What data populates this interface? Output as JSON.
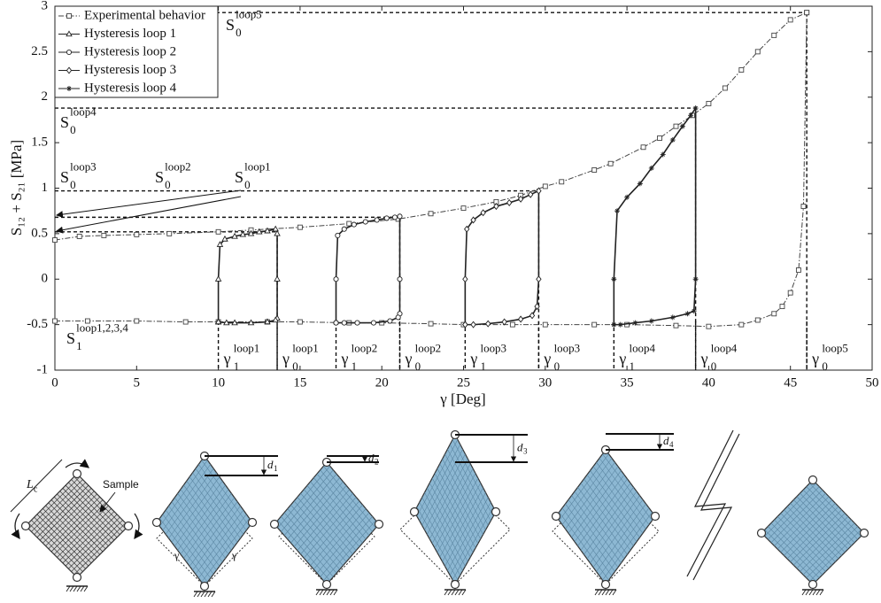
{
  "chart_data": {
    "type": "line",
    "x_label": "γ [Deg]",
    "y_label": "S₁₂ + S₂₁ [MPa]",
    "xlim": [
      0,
      50
    ],
    "xticks": [
      0,
      5,
      10,
      15,
      20,
      25,
      30,
      35,
      40,
      45,
      50
    ],
    "ylim": [
      -1,
      3
    ],
    "yticks": [
      -1,
      -0.5,
      0,
      0.5,
      1,
      1.5,
      2,
      2.5,
      3
    ],
    "legend": "upper left",
    "series": [
      {
        "name": "Experimental behavior",
        "color": "#444444",
        "dash": "dashdot",
        "marker": "square",
        "x": [
          0,
          1.5,
          3,
          5,
          7,
          10,
          12,
          15,
          18,
          21,
          23,
          25,
          27,
          28.5,
          30,
          31,
          33,
          34,
          36,
          37,
          38,
          39,
          40,
          41,
          42,
          43,
          44,
          45,
          46,
          null,
          0,
          2,
          5,
          8,
          10,
          13,
          15,
          18,
          20,
          23,
          25,
          28,
          30,
          33,
          35,
          38,
          40,
          42,
          43,
          44,
          44.5,
          45,
          45.5,
          45.8,
          46
        ],
        "values": [
          0.43,
          0.47,
          0.48,
          0.49,
          0.5,
          0.52,
          0.54,
          0.57,
          0.61,
          0.66,
          0.72,
          0.78,
          0.85,
          0.92,
          1.02,
          1.07,
          1.2,
          1.27,
          1.45,
          1.55,
          1.68,
          1.8,
          1.93,
          2.1,
          2.3,
          2.5,
          2.68,
          2.85,
          2.93,
          null,
          -0.46,
          -0.46,
          -0.46,
          -0.47,
          -0.47,
          -0.47,
          -0.47,
          -0.48,
          -0.48,
          -0.49,
          -0.5,
          -0.5,
          -0.5,
          -0.5,
          -0.5,
          -0.51,
          -0.52,
          -0.5,
          -0.45,
          -0.38,
          -0.3,
          -0.15,
          0.1,
          0.8,
          2.93
        ]
      },
      {
        "name": "Hysteresis loop 1",
        "color": "#222222",
        "dash": "solid",
        "marker": "triangle",
        "x": [
          10,
          10,
          10.1,
          10.4,
          11,
          11.5,
          12,
          12.5,
          13,
          13.5,
          13.6,
          13.6,
          13.6,
          13.5,
          13,
          12,
          11,
          10.5,
          10
        ],
        "values": [
          -0.47,
          0,
          0.38,
          0.44,
          0.47,
          0.49,
          0.5,
          0.52,
          0.53,
          0.55,
          0.5,
          0,
          -0.43,
          -0.45,
          -0.47,
          -0.48,
          -0.48,
          -0.48,
          -0.47
        ]
      },
      {
        "name": "Hysteresis loop 2",
        "color": "#222222",
        "dash": "solid",
        "marker": "circle",
        "x": [
          17.2,
          17.2,
          17.3,
          17.7,
          18.3,
          19,
          19.7,
          20.3,
          20.8,
          21.1,
          21.1,
          21.1,
          21,
          20.5,
          19.5,
          18.5,
          17.7,
          17.2
        ],
        "values": [
          -0.48,
          0,
          0.48,
          0.55,
          0.6,
          0.63,
          0.65,
          0.67,
          0.68,
          0.69,
          0,
          -0.38,
          -0.42,
          -0.46,
          -0.48,
          -0.48,
          -0.48,
          -0.48
        ]
      },
      {
        "name": "Hysteresis loop 3",
        "color": "#222222",
        "dash": "solid",
        "marker": "diamond",
        "x": [
          25.1,
          25.1,
          25.2,
          25.6,
          26.2,
          27,
          27.8,
          28.5,
          29.1,
          29.6,
          29.6,
          29.5,
          29.2,
          28.5,
          27.5,
          26.5,
          25.6,
          25.1
        ],
        "values": [
          -0.5,
          0,
          0.55,
          0.65,
          0.73,
          0.8,
          0.84,
          0.88,
          0.93,
          0.97,
          0,
          -0.3,
          -0.4,
          -0.44,
          -0.47,
          -0.49,
          -0.5,
          -0.5
        ]
      },
      {
        "name": "Hysteresis loop 4",
        "color": "#222222",
        "dash": "solid",
        "marker": "star",
        "x": [
          34.2,
          34.2,
          34.4,
          35,
          35.8,
          36.5,
          37.2,
          37.8,
          38.4,
          38.9,
          39.2,
          39.2,
          39.1,
          38.7,
          37.8,
          36.5,
          35.5,
          34.6,
          34.2
        ],
        "values": [
          -0.5,
          0,
          0.75,
          0.9,
          1.05,
          1.22,
          1.37,
          1.53,
          1.68,
          1.8,
          1.88,
          0,
          -0.35,
          -0.38,
          -0.42,
          -0.46,
          -0.48,
          -0.5,
          -0.5
        ]
      }
    ],
    "stress_labels": [
      {
        "base": "S",
        "sub": "0",
        "sup": "loop5",
        "x": 46,
        "y": 2.93
      },
      {
        "base": "S",
        "sub": "0",
        "sup": "loop4",
        "x": 39.2,
        "y": 1.88
      },
      {
        "base": "S",
        "sub": "0",
        "sup": "loop3",
        "x": 29.6,
        "y": 0.97
      },
      {
        "base": "S",
        "sub": "0",
        "sup": "loop2",
        "x": 21.1,
        "y": 0.68
      },
      {
        "base": "S",
        "sub": "0",
        "sup": "loop1",
        "x": 13.6,
        "y": 0.52
      },
      {
        "base": "S",
        "sub": "1",
        "sup": "loop1,2,3,4"
      }
    ],
    "gamma_labels": [
      {
        "base": "γ",
        "sub": "1",
        "sup": "loop1",
        "x": 10
      },
      {
        "base": "γ",
        "sub": "0",
        "sup": "loop1",
        "x": 13.6
      },
      {
        "base": "γ",
        "sub": "1",
        "sup": "loop2",
        "x": 17.2
      },
      {
        "base": "γ",
        "sub": "0",
        "sup": "loop2",
        "x": 21.1
      },
      {
        "base": "γ",
        "sub": "1",
        "sup": "loop3",
        "x": 25.1
      },
      {
        "base": "γ",
        "sub": "0",
        "sup": "loop3",
        "x": 29.6
      },
      {
        "base": "γ",
        "sub": "1",
        "sup": "loop4",
        "x": 34.2
      },
      {
        "base": "γ",
        "sub": "0",
        "sup": "loop4",
        "x": 39.2
      },
      {
        "base": "γ",
        "sub": "0",
        "sup": "loop5",
        "x": 46
      }
    ]
  },
  "diagram": {
    "sample_label": "Sample",
    "length": {
      "base": "L",
      "sub": "c"
    },
    "angle": "γ",
    "displacements": [
      {
        "base": "d",
        "sub": "1"
      },
      {
        "base": "d",
        "sub": "2"
      },
      {
        "base": "d",
        "sub": "3"
      },
      {
        "base": "d",
        "sub": "4"
      }
    ]
  }
}
